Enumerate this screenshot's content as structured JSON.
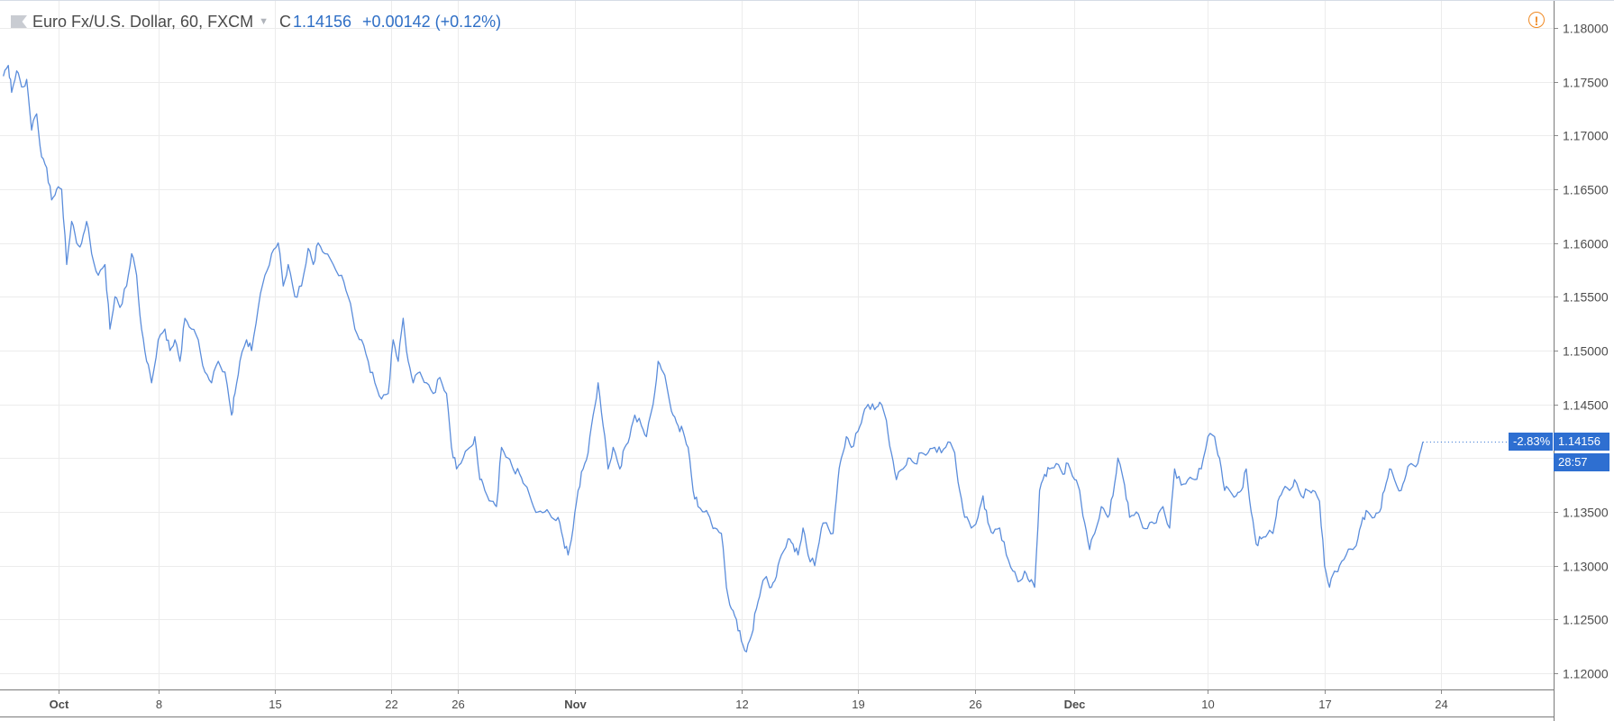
{
  "header": {
    "symbol": "Euro Fx/U.S. Dollar, 60, FXCM",
    "close_label": "C",
    "close_value": "1.14156",
    "change": "+0.00142 (+0.12%)",
    "warning_icon": "alert-circle-icon",
    "flag_icon": "flag-icon"
  },
  "price_tags": {
    "percent": "-2.83%",
    "price": "1.14156",
    "countdown": "28:57"
  },
  "colors": {
    "line": "#5b8ddb",
    "tag_background": "#2e6fd1",
    "change_text": "#2f6fc6",
    "warning": "#f08a24"
  },
  "chart_data": {
    "type": "line",
    "y_ticks": [
      "1.18000",
      "1.17500",
      "1.17000",
      "1.16500",
      "1.16000",
      "1.15500",
      "1.15000",
      "1.14500",
      "1.14000",
      "1.13500",
      "1.13000",
      "1.12500",
      "1.12000"
    ],
    "x_ticks": [
      {
        "label": "Oct",
        "day": 2,
        "bold": true
      },
      {
        "label": "8",
        "day": 8,
        "bold": false
      },
      {
        "label": "15",
        "day": 15,
        "bold": false
      },
      {
        "label": "22",
        "day": 22,
        "bold": false
      },
      {
        "label": "26",
        "day": 26,
        "bold": false
      },
      {
        "label": "Nov",
        "day": 33,
        "bold": true
      },
      {
        "label": "12",
        "day": 43,
        "bold": false
      },
      {
        "label": "19",
        "day": 50,
        "bold": false
      },
      {
        "label": "26",
        "day": 57,
        "bold": false
      },
      {
        "label": "Dec",
        "day": 63,
        "bold": true
      },
      {
        "label": "10",
        "day": 71,
        "bold": false
      },
      {
        "label": "17",
        "day": 78,
        "bold": false
      },
      {
        "label": "24",
        "day": 85,
        "bold": false
      }
    ],
    "ylim": [
      1.1185,
      1.1825
    ],
    "xlim": [
      -1.5,
      91.75
    ],
    "grid": true,
    "series": [
      {
        "values": [
          [
            -1.3,
            1.1755
          ],
          [
            -1.0,
            1.1765
          ],
          [
            -0.8,
            1.174
          ],
          [
            -0.5,
            1.176
          ],
          [
            -0.2,
            1.1745
          ],
          [
            0.1,
            1.1752
          ],
          [
            0.4,
            1.1705
          ],
          [
            0.7,
            1.172
          ],
          [
            1.0,
            1.168
          ],
          [
            1.3,
            1.167
          ],
          [
            1.6,
            1.164
          ],
          [
            1.9,
            1.165
          ],
          [
            2.2,
            1.165
          ],
          [
            2.5,
            1.158
          ],
          [
            2.8,
            1.162
          ],
          [
            3.1,
            1.16
          ],
          [
            3.4,
            1.16
          ],
          [
            3.7,
            1.162
          ],
          [
            4.0,
            1.159
          ],
          [
            4.4,
            1.157
          ],
          [
            4.8,
            1.158
          ],
          [
            5.1,
            1.152
          ],
          [
            5.4,
            1.155
          ],
          [
            5.7,
            1.154
          ],
          [
            6.1,
            1.156
          ],
          [
            6.4,
            1.159
          ],
          [
            6.7,
            1.157
          ],
          [
            7.0,
            1.152
          ],
          [
            7.3,
            1.149
          ],
          [
            7.6,
            1.147
          ],
          [
            8.0,
            1.151
          ],
          [
            8.4,
            1.152
          ],
          [
            8.7,
            1.15
          ],
          [
            9.0,
            1.151
          ],
          [
            9.3,
            1.149
          ],
          [
            9.6,
            1.153
          ],
          [
            10.0,
            1.152
          ],
          [
            10.4,
            1.151
          ],
          [
            10.8,
            1.148
          ],
          [
            11.2,
            1.147
          ],
          [
            11.6,
            1.149
          ],
          [
            12.0,
            1.148
          ],
          [
            12.4,
            1.144
          ],
          [
            12.6,
            1.146
          ],
          [
            12.9,
            1.149
          ],
          [
            13.3,
            1.151
          ],
          [
            13.6,
            1.15
          ],
          [
            14.0,
            1.154
          ],
          [
            14.4,
            1.157
          ],
          [
            14.8,
            1.159
          ],
          [
            15.2,
            1.16
          ],
          [
            15.5,
            1.156
          ],
          [
            15.8,
            1.158
          ],
          [
            16.2,
            1.155
          ],
          [
            16.6,
            1.156
          ],
          [
            17.0,
            1.1595
          ],
          [
            17.3,
            1.158
          ],
          [
            17.6,
            1.16
          ],
          [
            18.0,
            1.159
          ],
          [
            18.5,
            1.158
          ],
          [
            19.0,
            1.157
          ],
          [
            19.4,
            1.155
          ],
          [
            19.8,
            1.152
          ],
          [
            20.2,
            1.151
          ],
          [
            20.6,
            1.149
          ],
          [
            21.0,
            1.147
          ],
          [
            21.4,
            1.1455
          ],
          [
            21.8,
            1.146
          ],
          [
            22.1,
            1.151
          ],
          [
            22.4,
            1.149
          ],
          [
            22.7,
            1.153
          ],
          [
            23.0,
            1.149
          ],
          [
            23.3,
            1.147
          ],
          [
            23.7,
            1.148
          ],
          [
            24.1,
            1.147
          ],
          [
            24.5,
            1.146
          ],
          [
            24.9,
            1.1475
          ],
          [
            25.3,
            1.146
          ],
          [
            25.6,
            1.141
          ],
          [
            25.9,
            1.139
          ],
          [
            26.3,
            1.14
          ],
          [
            26.7,
            1.141
          ],
          [
            27.0,
            1.142
          ],
          [
            27.3,
            1.138
          ],
          [
            27.6,
            1.137
          ],
          [
            28.0,
            1.136
          ],
          [
            28.3,
            1.1355
          ],
          [
            28.6,
            1.141
          ],
          [
            29.0,
            1.14
          ],
          [
            29.3,
            1.139
          ],
          [
            29.7,
            1.1385
          ],
          [
            30.0,
            1.1375
          ],
          [
            30.4,
            1.136
          ],
          [
            30.8,
            1.135
          ],
          [
            31.2,
            1.135
          ],
          [
            31.6,
            1.1345
          ],
          [
            32.0,
            1.1345
          ],
          [
            32.3,
            1.1325
          ],
          [
            32.6,
            1.131
          ],
          [
            32.9,
            1.1335
          ],
          [
            33.2,
            1.137
          ],
          [
            33.5,
            1.139
          ],
          [
            33.8,
            1.1405
          ],
          [
            34.1,
            1.144
          ],
          [
            34.4,
            1.147
          ],
          [
            34.7,
            1.143
          ],
          [
            35.0,
            1.139
          ],
          [
            35.3,
            1.141
          ],
          [
            35.7,
            1.139
          ],
          [
            36.0,
            1.141
          ],
          [
            36.3,
            1.142
          ],
          [
            36.6,
            1.144
          ],
          [
            37.0,
            1.143
          ],
          [
            37.3,
            1.142
          ],
          [
            37.7,
            1.145
          ],
          [
            38.0,
            1.149
          ],
          [
            38.3,
            1.148
          ],
          [
            38.6,
            1.146
          ],
          [
            38.9,
            1.144
          ],
          [
            39.2,
            1.143
          ],
          [
            39.5,
            1.1425
          ],
          [
            39.8,
            1.141
          ],
          [
            40.1,
            1.137
          ],
          [
            40.4,
            1.1355
          ],
          [
            40.8,
            1.135
          ],
          [
            41.1,
            1.1345
          ],
          [
            41.4,
            1.1335
          ],
          [
            41.8,
            1.133
          ],
          [
            42.1,
            1.128
          ],
          [
            42.4,
            1.126
          ],
          [
            42.7,
            1.125
          ],
          [
            43.0,
            1.123
          ],
          [
            43.3,
            1.122
          ],
          [
            43.6,
            1.1235
          ],
          [
            43.9,
            1.126
          ],
          [
            44.2,
            1.128
          ],
          [
            44.5,
            1.129
          ],
          [
            44.8,
            1.128
          ],
          [
            45.1,
            1.129
          ],
          [
            45.4,
            1.131
          ],
          [
            45.8,
            1.1325
          ],
          [
            46.1,
            1.132
          ],
          [
            46.4,
            1.131
          ],
          [
            46.7,
            1.1335
          ],
          [
            47.0,
            1.131
          ],
          [
            47.4,
            1.13
          ],
          [
            47.8,
            1.1335
          ],
          [
            48.1,
            1.134
          ],
          [
            48.5,
            1.133
          ],
          [
            48.8,
            1.138
          ],
          [
            49.0,
            1.14
          ],
          [
            49.3,
            1.142
          ],
          [
            49.6,
            1.141
          ],
          [
            50.0,
            1.1425
          ],
          [
            50.3,
            1.144
          ],
          [
            50.6,
            1.145
          ],
          [
            51.0,
            1.1445
          ],
          [
            51.3,
            1.1452
          ],
          [
            51.7,
            1.1435
          ],
          [
            52.0,
            1.1405
          ],
          [
            52.3,
            1.138
          ],
          [
            52.7,
            1.139
          ],
          [
            53.0,
            1.14
          ],
          [
            53.4,
            1.1395
          ],
          [
            53.8,
            1.1405
          ],
          [
            54.2,
            1.1405
          ],
          [
            54.6,
            1.141
          ],
          [
            55.0,
            1.1405
          ],
          [
            55.4,
            1.1415
          ],
          [
            55.8,
            1.1405
          ],
          [
            56.1,
            1.137
          ],
          [
            56.4,
            1.1345
          ],
          [
            56.8,
            1.1335
          ],
          [
            57.2,
            1.1345
          ],
          [
            57.5,
            1.1365
          ],
          [
            57.8,
            1.134
          ],
          [
            58.1,
            1.133
          ],
          [
            58.5,
            1.1335
          ],
          [
            58.9,
            1.131
          ],
          [
            59.3,
            1.1295
          ],
          [
            59.6,
            1.1285
          ],
          [
            60.0,
            1.1295
          ],
          [
            60.3,
            1.1285
          ],
          [
            60.6,
            1.128
          ],
          [
            60.9,
            1.137
          ],
          [
            61.2,
            1.1385
          ],
          [
            61.5,
            1.139
          ],
          [
            61.9,
            1.1395
          ],
          [
            62.3,
            1.1385
          ],
          [
            62.6,
            1.1395
          ],
          [
            63.0,
            1.138
          ],
          [
            63.3,
            1.137
          ],
          [
            63.6,
            1.134
          ],
          [
            63.9,
            1.1315
          ],
          [
            64.2,
            1.133
          ],
          [
            64.6,
            1.1355
          ],
          [
            65.0,
            1.1345
          ],
          [
            65.3,
            1.1365
          ],
          [
            65.6,
            1.14
          ],
          [
            66.0,
            1.1375
          ],
          [
            66.3,
            1.1345
          ],
          [
            66.7,
            1.135
          ],
          [
            67.1,
            1.1335
          ],
          [
            67.5,
            1.134
          ],
          [
            67.9,
            1.134
          ],
          [
            68.3,
            1.1355
          ],
          [
            68.7,
            1.1335
          ],
          [
            69.0,
            1.139
          ],
          [
            69.4,
            1.1375
          ],
          [
            69.8,
            1.138
          ],
          [
            70.2,
            1.138
          ],
          [
            70.6,
            1.139
          ],
          [
            71.0,
            1.142
          ],
          [
            71.4,
            1.142
          ],
          [
            71.7,
            1.14
          ],
          [
            72.0,
            1.137
          ],
          [
            72.3,
            1.137
          ],
          [
            72.7,
            1.1365
          ],
          [
            73.0,
            1.137
          ],
          [
            73.3,
            1.139
          ],
          [
            73.6,
            1.135
          ],
          [
            73.9,
            1.132
          ],
          [
            74.2,
            1.1325
          ],
          [
            74.6,
            1.133
          ],
          [
            74.9,
            1.133
          ],
          [
            75.2,
            1.136
          ],
          [
            75.5,
            1.137
          ],
          [
            75.9,
            1.137
          ],
          [
            76.2,
            1.138
          ],
          [
            76.6,
            1.1365
          ],
          [
            77.0,
            1.137
          ],
          [
            77.3,
            1.137
          ],
          [
            77.7,
            1.136
          ],
          [
            78.0,
            1.13
          ],
          [
            78.3,
            1.128
          ],
          [
            78.6,
            1.1295
          ],
          [
            78.9,
            1.13
          ],
          [
            79.3,
            1.131
          ],
          [
            79.7,
            1.1315
          ],
          [
            80.0,
            1.1325
          ],
          [
            80.3,
            1.1345
          ],
          [
            80.6,
            1.135
          ],
          [
            81.0,
            1.1345
          ],
          [
            81.3,
            1.135
          ],
          [
            81.6,
            1.137
          ],
          [
            81.9,
            1.139
          ],
          [
            82.2,
            1.138
          ],
          [
            82.6,
            1.137
          ],
          [
            82.9,
            1.1385
          ],
          [
            83.2,
            1.1395
          ],
          [
            83.6,
            1.1395
          ],
          [
            83.9,
            1.1415
          ]
        ]
      }
    ]
  }
}
